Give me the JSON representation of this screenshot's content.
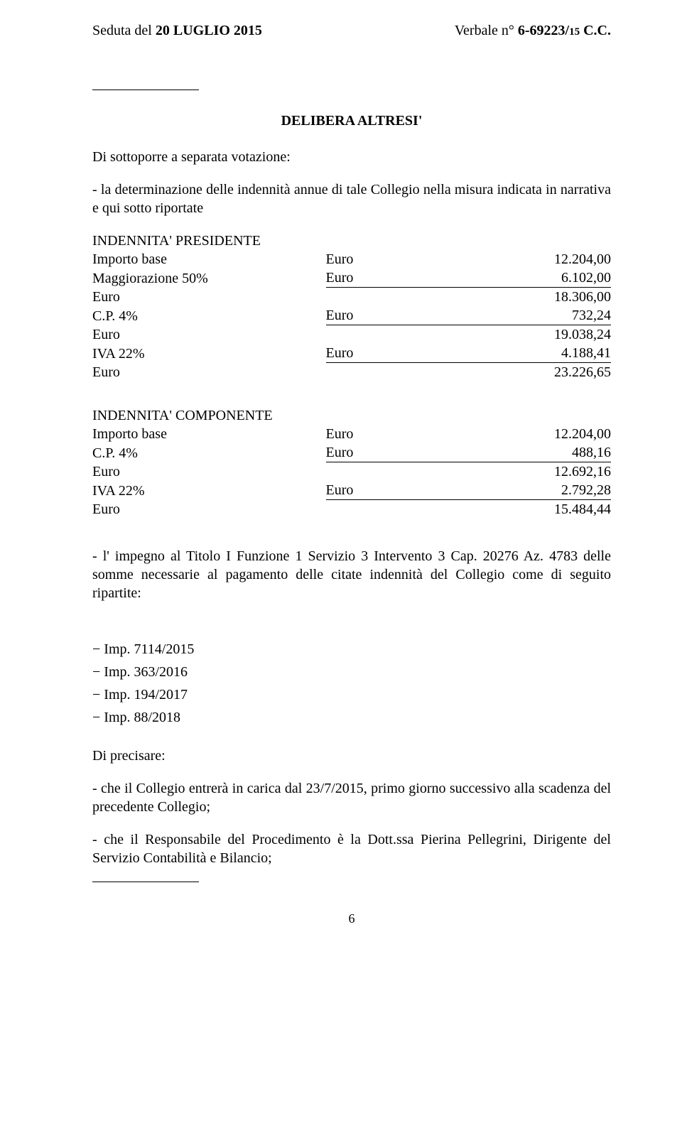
{
  "header": {
    "left_pre": "Seduta del ",
    "left_bold": "20 LUGLIO 2015",
    "right_pre": "Verbale n° ",
    "right_bold_a": "6-69223/",
    "right_small": "15",
    "right_tail": " C.C."
  },
  "delibera_title": "DELIBERA ALTRESI'",
  "p_sottoporre": "Di sottoporre a separata votazione:",
  "p_determinazione": "- la determinazione delle indennità annue di tale Collegio nella misura indicata in narrativa e qui sotto riportate",
  "presidente": {
    "title": "INDENNITA' PRESIDENTE",
    "rows": [
      {
        "label": "Importo base",
        "mid": "Euro",
        "val": "12.204,00",
        "ruled": false
      },
      {
        "label": "Maggiorazione 50%",
        "mid": "Euro",
        "val": "6.102,00",
        "ruled": true
      },
      {
        "label": "Euro",
        "mid": "",
        "val": "18.306,00",
        "ruled": false
      },
      {
        "label": "C.P. 4%",
        "mid": "Euro",
        "val": "732,24",
        "ruled": true
      },
      {
        "label": "Euro",
        "mid": "",
        "val": "19.038,24",
        "ruled": false
      },
      {
        "label": "IVA 22%",
        "mid": "Euro",
        "val": "4.188,41",
        "ruled": true
      },
      {
        "label": "Euro",
        "mid": "",
        "val": "23.226,65",
        "ruled": false
      }
    ]
  },
  "componente": {
    "title": "INDENNITA'  COMPONENTE",
    "rows": [
      {
        "label": "Importo base",
        "mid": "Euro",
        "val": "12.204,00",
        "ruled": false
      },
      {
        "label": "C.P. 4%",
        "mid": "Euro",
        "val": "488,16",
        "ruled": true
      },
      {
        "label": "Euro",
        "mid": "",
        "val": "12.692,16",
        "ruled": false
      },
      {
        "label": "IVA 22%",
        "mid": "Euro",
        "val": "2.792,28",
        "ruled": true
      },
      {
        "label": "Euro",
        "mid": "",
        "val": "15.484,44",
        "ruled": false
      }
    ]
  },
  "p_impegno": "- l' impegno al Titolo I Funzione 1 Servizio 3 Intervento 3 Cap. 20276 Az. 4783 delle somme necessarie al pagamento delle citate indennità del Collegio come di seguito ripartite:",
  "imp_list": [
    "Imp. 7114/2015",
    "Imp. 363/2016",
    "Imp. 194/2017",
    "Imp. 88/2018"
  ],
  "p_precisare": "Di precisare:",
  "p_collegio": "- che il Collegio entrerà in carica dal 23/7/2015, primo giorno successivo alla scadenza del precedente Collegio;",
  "p_responsabile": "- che il Responsabile del Procedimento è la Dott.ssa Pierina Pellegrini, Dirigente del Servizio Contabilità e Bilancio;",
  "page_number": "6"
}
